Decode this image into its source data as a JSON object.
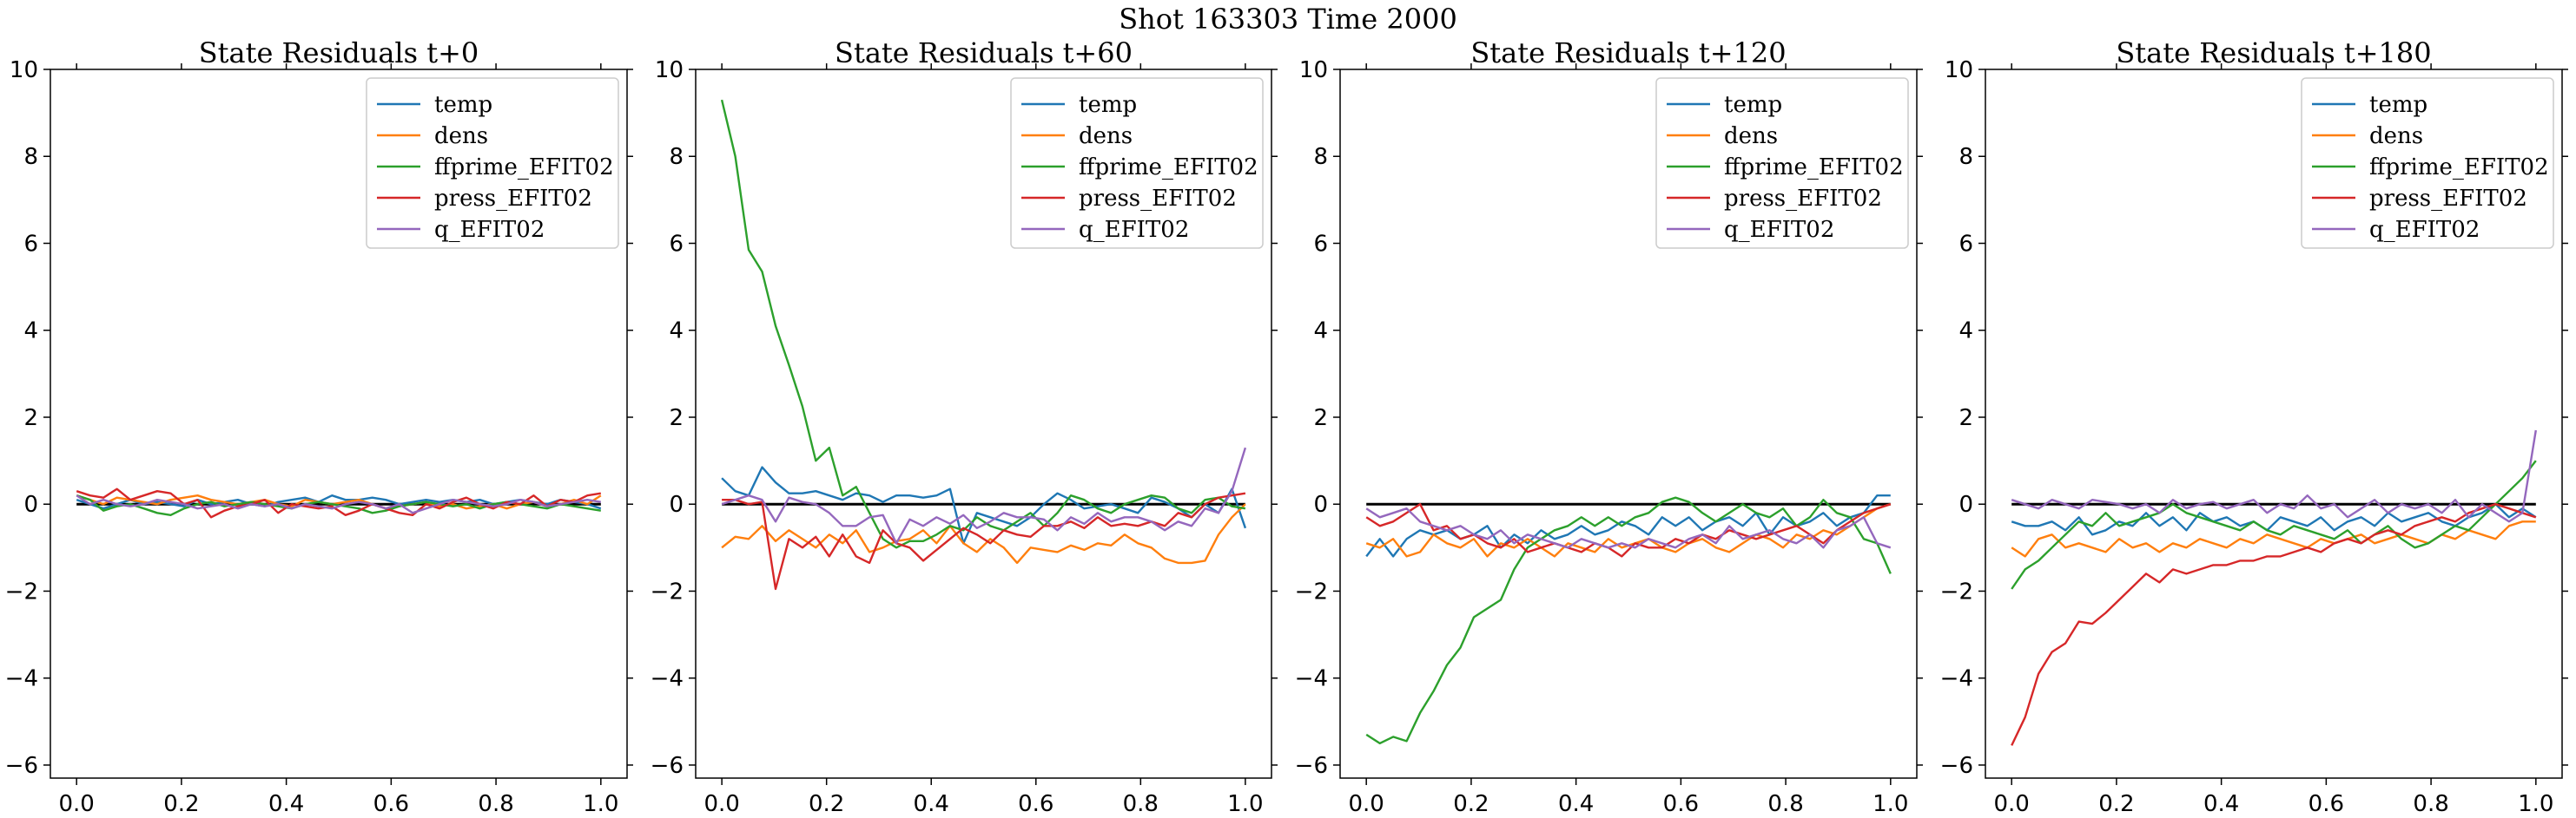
{
  "figure": {
    "suptitle": "Shot 163303   Time 2000"
  },
  "chart_data": [
    {
      "type": "line",
      "title": "State Residuals t+0",
      "xlabel": "",
      "ylabel": "",
      "xlim": [
        -0.05,
        1.05
      ],
      "ylim": [
        -6.3,
        10
      ],
      "xticks": [
        0.0,
        0.2,
        0.4,
        0.6,
        0.8,
        1.0
      ],
      "yticks": [
        -6,
        -4,
        -2,
        0,
        2,
        4,
        6,
        8,
        10
      ],
      "xtick_labels": [
        "0.0",
        "0.2",
        "0.4",
        "0.6",
        "0.8",
        "1.0"
      ],
      "ytick_labels": [
        "−6",
        "−4",
        "−2",
        "0",
        "2",
        "4",
        "6",
        "8",
        "10"
      ],
      "reference_line": 0,
      "legend_position": "top-right",
      "series": [
        {
          "name": "temp",
          "color": "#1f77b4",
          "values": [
            0.1,
            0.0,
            -0.1,
            0.0,
            0.1,
            0.0,
            0.05,
            0.0,
            -0.05,
            0.1,
            0.0,
            0.05,
            0.1,
            0.0,
            -0.05,
            0.05,
            0.1,
            0.15,
            0.05,
            0.2,
            0.1,
            0.1,
            0.15,
            0.1,
            0.0,
            0.05,
            0.1,
            0.05,
            0.1,
            0.05,
            0.1,
            0.0,
            0.05,
            0.1,
            0.05,
            0.0,
            0.1,
            0.05,
            0.0,
            -0.1
          ]
        },
        {
          "name": "dens",
          "color": "#ff7f0e",
          "values": [
            0.2,
            0.1,
            0.0,
            0.15,
            0.1,
            0.05,
            0.0,
            0.1,
            0.15,
            0.2,
            0.1,
            0.05,
            0.0,
            0.05,
            0.1,
            0.0,
            -0.05,
            0.1,
            0.05,
            0.0,
            0.05,
            0.1,
            0.0,
            -0.1,
            -0.05,
            0.0,
            0.05,
            -0.05,
            0.0,
            -0.1,
            -0.05,
            0.0,
            -0.1,
            0.0,
            0.05,
            -0.05,
            0.0,
            0.1,
            0.0,
            0.2
          ]
        },
        {
          "name": "ffprime_EFIT02",
          "color": "#2ca02c",
          "values": [
            0.2,
            0.1,
            -0.15,
            -0.05,
            0.0,
            -0.1,
            -0.2,
            -0.25,
            -0.1,
            0.0,
            0.05,
            -0.05,
            0.0,
            0.05,
            0.0,
            -0.05,
            -0.1,
            0.0,
            0.05,
            0.0,
            -0.05,
            -0.1,
            -0.2,
            -0.15,
            -0.05,
            0.0,
            0.05,
            0.0,
            -0.05,
            0.0,
            -0.1,
            0.0,
            0.05,
            0.0,
            -0.05,
            -0.1,
            0.0,
            -0.05,
            -0.1,
            -0.15
          ]
        },
        {
          "name": "press_EFIT02",
          "color": "#d62728",
          "values": [
            0.3,
            0.2,
            0.15,
            0.35,
            0.1,
            0.2,
            0.3,
            0.25,
            0.0,
            0.1,
            -0.3,
            -0.15,
            -0.05,
            0.0,
            0.1,
            -0.2,
            0.0,
            -0.05,
            -0.1,
            -0.05,
            -0.25,
            -0.15,
            0.0,
            -0.1,
            -0.2,
            -0.25,
            0.0,
            -0.1,
            0.05,
            0.15,
            0.0,
            -0.1,
            0.05,
            0.0,
            0.2,
            -0.05,
            0.1,
            0.05,
            0.2,
            0.25
          ]
        },
        {
          "name": "q_EFIT02",
          "color": "#9467bd",
          "values": [
            0.2,
            0.0,
            0.1,
            0.0,
            -0.05,
            0.0,
            0.1,
            0.05,
            0.0,
            -0.1,
            -0.05,
            0.0,
            -0.1,
            0.0,
            -0.05,
            0.0,
            -0.1,
            0.0,
            -0.05,
            -0.1,
            0.0,
            0.05,
            0.0,
            -0.1,
            0.0,
            -0.2,
            -0.1,
            0.0,
            0.1,
            0.05,
            0.0,
            -0.05,
            0.0,
            0.1,
            0.05,
            -0.05,
            0.0,
            0.05,
            0.1,
            0.05
          ]
        }
      ]
    },
    {
      "type": "line",
      "title": "State Residuals t+60",
      "xlabel": "",
      "ylabel": "",
      "xlim": [
        -0.05,
        1.05
      ],
      "ylim": [
        -6.3,
        10
      ],
      "xticks": [
        0.0,
        0.2,
        0.4,
        0.6,
        0.8,
        1.0
      ],
      "yticks": [
        -6,
        -4,
        -2,
        0,
        2,
        4,
        6,
        8,
        10
      ],
      "xtick_labels": [
        "0.0",
        "0.2",
        "0.4",
        "0.6",
        "0.8",
        "1.0"
      ],
      "ytick_labels": [
        "−6",
        "−4",
        "−2",
        "0",
        "2",
        "4",
        "6",
        "8",
        "10"
      ],
      "reference_line": 0,
      "legend_position": "top-right",
      "series": [
        {
          "name": "temp",
          "color": "#1f77b4",
          "values": [
            0.6,
            0.3,
            0.2,
            0.85,
            0.5,
            0.25,
            0.25,
            0.3,
            0.2,
            0.1,
            0.25,
            0.2,
            0.05,
            0.2,
            0.2,
            0.15,
            0.2,
            0.35,
            -0.9,
            -0.2,
            -0.3,
            -0.4,
            -0.5,
            -0.3,
            0.0,
            0.25,
            0.1,
            -0.1,
            -0.05,
            0.0,
            -0.1,
            -0.2,
            0.15,
            0.05,
            -0.1,
            -0.3,
            0.0,
            -0.2,
            0.35,
            -0.55
          ]
        },
        {
          "name": "dens",
          "color": "#ff7f0e",
          "values": [
            -1.0,
            -0.75,
            -0.8,
            -0.5,
            -0.85,
            -0.6,
            -0.8,
            -1.0,
            -0.7,
            -0.9,
            -0.6,
            -1.1,
            -1.0,
            -0.85,
            -0.8,
            -0.6,
            -0.9,
            -0.5,
            -0.9,
            -1.1,
            -0.8,
            -1.0,
            -1.35,
            -1.0,
            -1.05,
            -1.1,
            -0.95,
            -1.05,
            -0.9,
            -0.95,
            -0.7,
            -0.9,
            -1.0,
            -1.25,
            -1.35,
            -1.35,
            -1.3,
            -0.7,
            -0.3,
            0.0
          ]
        },
        {
          "name": "ffprime_EFIT02",
          "color": "#2ca02c",
          "values": [
            9.3,
            8.0,
            5.85,
            5.35,
            4.1,
            3.2,
            2.25,
            1.0,
            1.3,
            0.2,
            0.4,
            -0.2,
            -0.8,
            -1.0,
            -0.85,
            -0.85,
            -0.7,
            -0.5,
            -0.6,
            -0.3,
            -0.5,
            -0.6,
            -0.4,
            -0.2,
            -0.5,
            -0.2,
            0.2,
            0.1,
            -0.1,
            -0.2,
            0.0,
            0.1,
            0.2,
            0.15,
            -0.1,
            -0.2,
            0.1,
            0.15,
            -0.05,
            -0.1
          ]
        },
        {
          "name": "press_EFIT02",
          "color": "#d62728",
          "values": [
            0.1,
            0.1,
            0.0,
            0.05,
            -1.95,
            -0.8,
            -1.0,
            -0.75,
            -1.2,
            -0.7,
            -1.2,
            -1.35,
            -0.6,
            -0.9,
            -1.0,
            -1.3,
            -1.05,
            -0.8,
            -0.55,
            -0.7,
            -0.9,
            -0.6,
            -0.7,
            -0.75,
            -0.5,
            -0.5,
            -0.4,
            -0.55,
            -0.3,
            -0.5,
            -0.45,
            -0.5,
            -0.4,
            -0.5,
            -0.2,
            -0.3,
            0.0,
            0.15,
            0.2,
            0.25
          ]
        },
        {
          "name": "q_EFIT02",
          "color": "#9467bd",
          "values": [
            0.0,
            0.1,
            0.2,
            0.1,
            -0.4,
            0.15,
            0.05,
            0.0,
            -0.2,
            -0.5,
            -0.5,
            -0.3,
            -0.25,
            -0.9,
            -0.35,
            -0.5,
            -0.3,
            -0.45,
            -0.25,
            -0.55,
            -0.4,
            -0.2,
            -0.3,
            -0.3,
            -0.35,
            -0.6,
            -0.3,
            -0.45,
            -0.2,
            -0.4,
            -0.3,
            -0.3,
            -0.4,
            -0.6,
            -0.4,
            -0.5,
            -0.1,
            -0.2,
            0.3,
            1.3
          ]
        }
      ]
    },
    {
      "type": "line",
      "title": "State Residuals t+120",
      "xlabel": "",
      "ylabel": "",
      "xlim": [
        -0.05,
        1.05
      ],
      "ylim": [
        -6.3,
        10
      ],
      "xticks": [
        0.0,
        0.2,
        0.4,
        0.6,
        0.8,
        1.0
      ],
      "yticks": [
        -6,
        -4,
        -2,
        0,
        2,
        4,
        6,
        8,
        10
      ],
      "xtick_labels": [
        "0.0",
        "0.2",
        "0.4",
        "0.6",
        "0.8",
        "1.0"
      ],
      "ytick_labels": [
        "−6",
        "−4",
        "−2",
        "0",
        "2",
        "4",
        "6",
        "8",
        "10"
      ],
      "reference_line": 0,
      "legend_position": "top-right",
      "series": [
        {
          "name": "temp",
          "color": "#1f77b4",
          "values": [
            -1.2,
            -0.8,
            -1.2,
            -0.8,
            -0.6,
            -0.7,
            -0.6,
            -0.8,
            -0.7,
            -0.5,
            -1.0,
            -0.7,
            -0.9,
            -0.6,
            -0.8,
            -0.7,
            -0.5,
            -0.7,
            -0.6,
            -0.4,
            -0.5,
            -0.7,
            -0.3,
            -0.5,
            -0.3,
            -0.6,
            -0.4,
            -0.3,
            -0.5,
            -0.2,
            -0.7,
            -0.3,
            -0.5,
            -0.4,
            -0.2,
            -0.5,
            -0.3,
            -0.2,
            0.2,
            0.2
          ]
        },
        {
          "name": "dens",
          "color": "#ff7f0e",
          "values": [
            -0.9,
            -1.0,
            -0.8,
            -1.2,
            -1.1,
            -0.7,
            -0.9,
            -1.0,
            -0.8,
            -1.2,
            -0.9,
            -1.0,
            -0.8,
            -1.0,
            -1.2,
            -0.9,
            -1.0,
            -1.1,
            -0.8,
            -1.0,
            -0.9,
            -0.8,
            -1.0,
            -1.1,
            -0.9,
            -0.8,
            -1.0,
            -1.1,
            -0.9,
            -0.7,
            -0.8,
            -1.0,
            -0.7,
            -0.8,
            -0.6,
            -0.7,
            -0.5,
            -0.3,
            -0.1,
            0.0
          ]
        },
        {
          "name": "ffprime_EFIT02",
          "color": "#2ca02c",
          "values": [
            -5.3,
            -5.5,
            -5.35,
            -5.45,
            -4.8,
            -4.3,
            -3.7,
            -3.3,
            -2.6,
            -2.4,
            -2.2,
            -1.5,
            -1.0,
            -0.8,
            -0.6,
            -0.5,
            -0.3,
            -0.5,
            -0.3,
            -0.5,
            -0.3,
            -0.2,
            0.05,
            0.15,
            0.05,
            -0.2,
            -0.4,
            -0.2,
            0.0,
            -0.2,
            -0.3,
            -0.1,
            -0.5,
            -0.3,
            0.1,
            -0.2,
            -0.3,
            -0.8,
            -0.9,
            -1.6
          ]
        },
        {
          "name": "press_EFIT02",
          "color": "#d62728",
          "values": [
            -0.3,
            -0.5,
            -0.4,
            -0.2,
            0.0,
            -0.6,
            -0.5,
            -0.8,
            -0.7,
            -0.9,
            -1.0,
            -0.8,
            -1.1,
            -1.0,
            -0.9,
            -1.0,
            -1.1,
            -0.9,
            -1.0,
            -1.2,
            -0.9,
            -1.0,
            -1.0,
            -0.8,
            -0.9,
            -0.7,
            -0.8,
            -0.6,
            -0.7,
            -0.8,
            -0.7,
            -0.6,
            -0.5,
            -0.7,
            -0.9,
            -0.6,
            -0.4,
            -0.2,
            -0.1,
            0.0
          ]
        },
        {
          "name": "q_EFIT02",
          "color": "#9467bd",
          "values": [
            -0.1,
            -0.3,
            -0.2,
            -0.1,
            -0.4,
            -0.5,
            -0.6,
            -0.5,
            -0.7,
            -0.8,
            -0.6,
            -0.9,
            -0.7,
            -0.8,
            -0.9,
            -1.0,
            -0.8,
            -0.9,
            -1.0,
            -0.9,
            -1.0,
            -0.8,
            -0.9,
            -1.0,
            -0.8,
            -0.7,
            -0.9,
            -0.5,
            -0.8,
            -0.7,
            -0.6,
            -0.8,
            -0.9,
            -0.7,
            -1.0,
            -0.6,
            -0.5,
            -0.3,
            -0.9,
            -1.0
          ]
        }
      ]
    },
    {
      "type": "line",
      "title": "State Residuals t+180",
      "xlabel": "",
      "ylabel": "",
      "xlim": [
        -0.05,
        1.05
      ],
      "ylim": [
        -6.3,
        10
      ],
      "xticks": [
        0.0,
        0.2,
        0.4,
        0.6,
        0.8,
        1.0
      ],
      "yticks": [
        -6,
        -4,
        -2,
        0,
        2,
        4,
        6,
        8,
        10
      ],
      "xtick_labels": [
        "0.0",
        "0.2",
        "0.4",
        "0.6",
        "0.8",
        "1.0"
      ],
      "ytick_labels": [
        "−6",
        "−4",
        "−2",
        "0",
        "2",
        "4",
        "6",
        "8",
        "10"
      ],
      "reference_line": 0,
      "legend_position": "top-right",
      "series": [
        {
          "name": "temp",
          "color": "#1f77b4",
          "values": [
            -0.4,
            -0.5,
            -0.5,
            -0.4,
            -0.6,
            -0.3,
            -0.7,
            -0.6,
            -0.4,
            -0.5,
            -0.2,
            -0.5,
            -0.3,
            -0.6,
            -0.2,
            -0.4,
            -0.3,
            -0.5,
            -0.4,
            -0.6,
            -0.3,
            -0.4,
            -0.5,
            -0.3,
            -0.6,
            -0.4,
            -0.3,
            -0.5,
            -0.2,
            -0.4,
            -0.3,
            -0.2,
            -0.4,
            -0.5,
            -0.3,
            -0.2,
            0.0,
            -0.3,
            -0.1,
            -0.3
          ]
        },
        {
          "name": "dens",
          "color": "#ff7f0e",
          "values": [
            -1.0,
            -1.2,
            -0.8,
            -0.7,
            -1.0,
            -0.9,
            -1.0,
            -1.1,
            -0.8,
            -1.0,
            -0.9,
            -1.1,
            -0.9,
            -1.0,
            -0.8,
            -0.9,
            -1.0,
            -0.8,
            -0.9,
            -0.7,
            -0.8,
            -0.9,
            -1.0,
            -0.8,
            -0.9,
            -0.8,
            -0.7,
            -0.9,
            -0.8,
            -0.7,
            -0.8,
            -0.9,
            -0.7,
            -0.8,
            -0.6,
            -0.7,
            -0.8,
            -0.5,
            -0.4,
            -0.4
          ]
        },
        {
          "name": "ffprime_EFIT02",
          "color": "#2ca02c",
          "values": [
            -1.95,
            -1.5,
            -1.3,
            -1.0,
            -0.7,
            -0.4,
            -0.5,
            -0.2,
            -0.5,
            -0.4,
            -0.3,
            -0.2,
            0.0,
            -0.2,
            -0.3,
            -0.4,
            -0.5,
            -0.6,
            -0.4,
            -0.6,
            -0.7,
            -0.5,
            -0.6,
            -0.7,
            -0.8,
            -0.6,
            -0.9,
            -0.7,
            -0.5,
            -0.8,
            -1.0,
            -0.9,
            -0.7,
            -0.5,
            -0.6,
            -0.3,
            0.0,
            0.3,
            0.6,
            1.0
          ]
        },
        {
          "name": "press_EFIT02",
          "color": "#d62728",
          "values": [
            -5.55,
            -4.9,
            -3.9,
            -3.4,
            -3.2,
            -2.7,
            -2.75,
            -2.5,
            -2.2,
            -1.9,
            -1.6,
            -1.8,
            -1.5,
            -1.6,
            -1.5,
            -1.4,
            -1.4,
            -1.3,
            -1.3,
            -1.2,
            -1.2,
            -1.1,
            -1.0,
            -1.1,
            -0.9,
            -0.8,
            -0.9,
            -0.7,
            -0.6,
            -0.7,
            -0.5,
            -0.4,
            -0.3,
            -0.4,
            -0.2,
            -0.1,
            0.0,
            -0.1,
            -0.2,
            -0.3
          ]
        },
        {
          "name": "q_EFIT02",
          "color": "#9467bd",
          "values": [
            0.1,
            0.0,
            -0.1,
            0.1,
            0.0,
            -0.1,
            0.1,
            0.05,
            0.0,
            -0.1,
            0.0,
            -0.2,
            0.1,
            -0.1,
            0.0,
            0.05,
            -0.1,
            0.0,
            0.1,
            -0.2,
            0.0,
            -0.1,
            0.2,
            -0.1,
            0.0,
            -0.3,
            -0.1,
            0.1,
            -0.2,
            0.0,
            -0.1,
            0.0,
            -0.2,
            0.1,
            -0.3,
            0.0,
            -0.2,
            -0.4,
            -0.2,
            1.7
          ]
        }
      ]
    }
  ]
}
